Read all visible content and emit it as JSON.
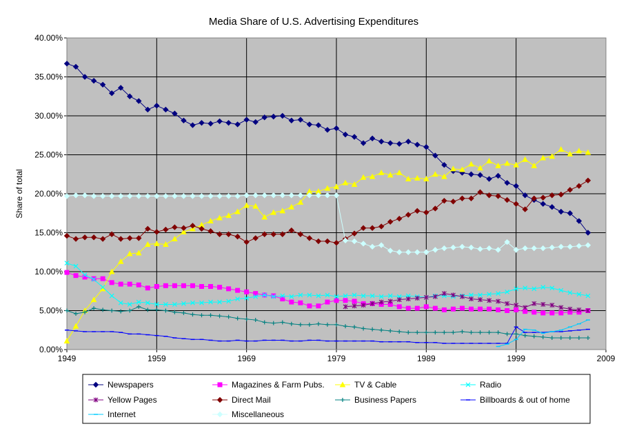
{
  "chart_data": {
    "type": "line",
    "title": "Media Share of U.S. Advertising Expenditures",
    "y_label": "Share of total",
    "x": [
      1949,
      1950,
      1951,
      1952,
      1953,
      1954,
      1955,
      1956,
      1957,
      1958,
      1959,
      1960,
      1961,
      1962,
      1963,
      1964,
      1965,
      1966,
      1967,
      1968,
      1969,
      1970,
      1971,
      1972,
      1973,
      1974,
      1975,
      1976,
      1977,
      1978,
      1979,
      1980,
      1981,
      1982,
      1983,
      1984,
      1985,
      1986,
      1987,
      1988,
      1989,
      1990,
      1991,
      1992,
      1993,
      1994,
      1995,
      1996,
      1997,
      1998,
      1999,
      2000,
      2001,
      2002,
      2003,
      2004,
      2005,
      2006,
      2007
    ],
    "xlim": [
      1949,
      2009
    ],
    "xticks": [
      1949,
      1959,
      1969,
      1979,
      1989,
      1999,
      2009
    ],
    "ylim": [
      0,
      40
    ],
    "yticks": [
      {
        "value": 0,
        "label": "0.00%"
      },
      {
        "value": 5,
        "label": "5.00%"
      },
      {
        "value": 10,
        "label": "10.00%"
      },
      {
        "value": 15,
        "label": "15.00%"
      },
      {
        "value": 20,
        "label": "20.00%"
      },
      {
        "value": 25,
        "label": "25.00%"
      },
      {
        "value": 30,
        "label": "30.00%"
      },
      {
        "value": 35,
        "label": "35.00%"
      },
      {
        "value": 40,
        "label": "40.00%"
      }
    ],
    "grid": true,
    "legend": "bottom",
    "series": [
      {
        "name": "Newspapers",
        "color": "#000080",
        "marker": "diamond",
        "values": [
          36.7,
          36.3,
          35.0,
          34.5,
          34.0,
          32.9,
          33.6,
          32.5,
          31.9,
          30.8,
          31.3,
          30.8,
          30.3,
          29.4,
          28.8,
          29.1,
          29.0,
          29.3,
          29.1,
          28.9,
          29.5,
          29.2,
          29.8,
          29.9,
          30.0,
          29.4,
          29.5,
          28.9,
          28.8,
          28.2,
          28.4,
          27.6,
          27.3,
          26.5,
          27.1,
          26.7,
          26.5,
          26.4,
          26.7,
          26.3,
          26.0,
          24.9,
          23.7,
          22.9,
          22.7,
          22.5,
          22.4,
          21.9,
          22.3,
          21.4,
          21.0,
          19.8,
          19.2,
          18.7,
          18.3,
          17.7,
          17.5,
          16.5,
          15.0
        ]
      },
      {
        "name": "Magazines & Farm Pubs.",
        "color": "#ff00ff",
        "marker": "square",
        "values": [
          9.9,
          9.5,
          9.3,
          9.1,
          9.1,
          8.6,
          8.4,
          8.4,
          8.3,
          7.9,
          8.1,
          8.2,
          8.2,
          8.2,
          8.2,
          8.1,
          8.1,
          8.0,
          7.8,
          7.6,
          7.4,
          7.2,
          7.0,
          6.9,
          6.5,
          6.1,
          6.0,
          5.6,
          5.6,
          6.1,
          6.3,
          6.3,
          6.2,
          5.9,
          5.9,
          5.8,
          5.8,
          5.5,
          5.3,
          5.3,
          5.5,
          5.3,
          5.1,
          5.2,
          5.3,
          5.2,
          5.2,
          5.2,
          5.1,
          5.0,
          5.1,
          4.9,
          4.8,
          4.7,
          4.7,
          4.7,
          4.8,
          4.8,
          5.0
        ]
      },
      {
        "name": "TV & Cable",
        "color": "#ffff00",
        "marker": "triangle",
        "values": [
          1.1,
          3.0,
          5.0,
          6.4,
          7.8,
          10.0,
          11.3,
          12.3,
          12.4,
          13.5,
          13.6,
          13.5,
          14.2,
          15.1,
          15.5,
          16.0,
          16.5,
          16.9,
          17.2,
          17.7,
          18.5,
          18.4,
          17.0,
          17.6,
          17.8,
          18.3,
          18.9,
          20.3,
          20.3,
          20.7,
          20.9,
          21.4,
          21.2,
          22.1,
          22.2,
          22.7,
          22.4,
          22.7,
          21.9,
          22.0,
          21.9,
          22.5,
          22.2,
          23.2,
          23.1,
          23.8,
          23.3,
          24.2,
          23.6,
          23.9,
          23.7,
          24.4,
          23.6,
          24.6,
          24.8,
          25.7,
          25.1,
          25.5,
          25.3
        ]
      },
      {
        "name": "Radio",
        "color": "#00ffff",
        "marker": "x",
        "values": [
          11.1,
          10.7,
          9.6,
          9.0,
          8.0,
          6.9,
          6.0,
          5.8,
          6.1,
          6.0,
          5.8,
          5.8,
          5.8,
          5.9,
          6.0,
          6.0,
          6.1,
          6.1,
          6.2,
          6.5,
          6.6,
          6.8,
          7.0,
          6.8,
          6.9,
          6.8,
          7.0,
          7.0,
          6.9,
          7.0,
          6.8,
          6.9,
          7.0,
          6.9,
          6.9,
          6.8,
          6.9,
          6.8,
          6.9,
          6.8,
          6.7,
          6.9,
          6.9,
          6.8,
          6.9,
          7.0,
          7.0,
          7.1,
          7.2,
          7.4,
          7.8,
          7.9,
          7.8,
          8.0,
          7.9,
          7.6,
          7.3,
          7.1,
          6.9
        ]
      },
      {
        "name": "Yellow Pages",
        "color": "#800080",
        "marker": "star",
        "values": [
          null,
          null,
          null,
          null,
          null,
          null,
          null,
          null,
          null,
          null,
          null,
          null,
          null,
          null,
          null,
          null,
          null,
          null,
          null,
          null,
          null,
          null,
          null,
          null,
          null,
          null,
          null,
          null,
          null,
          null,
          null,
          5.5,
          5.6,
          5.7,
          5.9,
          6.1,
          6.2,
          6.4,
          6.5,
          6.6,
          6.7,
          6.8,
          7.2,
          7.0,
          6.8,
          6.5,
          6.4,
          6.3,
          6.2,
          5.9,
          5.7,
          5.4,
          5.9,
          5.8,
          5.7,
          5.4,
          5.2,
          5.1,
          5.0
        ]
      },
      {
        "name": "Direct Mail",
        "color": "#800000",
        "marker": "diamond",
        "values": [
          14.6,
          14.2,
          14.4,
          14.4,
          14.2,
          14.8,
          14.2,
          14.3,
          14.3,
          15.5,
          15.1,
          15.4,
          15.7,
          15.6,
          15.9,
          15.5,
          15.2,
          14.8,
          14.8,
          14.5,
          13.8,
          14.3,
          14.8,
          14.8,
          14.8,
          15.3,
          14.8,
          14.3,
          13.9,
          13.9,
          13.7,
          14.2,
          14.9,
          15.6,
          15.6,
          15.8,
          16.4,
          16.8,
          17.3,
          17.8,
          17.6,
          18.1,
          19.1,
          19.0,
          19.4,
          19.4,
          20.2,
          19.8,
          19.7,
          19.2,
          18.7,
          18.0,
          19.4,
          19.5,
          19.8,
          19.9,
          20.5,
          21.0,
          21.7
        ]
      },
      {
        "name": "Business Papers",
        "color": "#008080",
        "marker": "plus",
        "values": [
          5.0,
          4.6,
          4.8,
          5.3,
          5.1,
          5.0,
          4.9,
          5.0,
          5.5,
          5.1,
          5.1,
          5.0,
          4.8,
          4.7,
          4.5,
          4.4,
          4.4,
          4.3,
          4.2,
          4.0,
          3.9,
          3.8,
          3.5,
          3.4,
          3.5,
          3.3,
          3.2,
          3.2,
          3.3,
          3.2,
          3.2,
          3.0,
          2.9,
          2.7,
          2.6,
          2.5,
          2.4,
          2.3,
          2.2,
          2.2,
          2.2,
          2.2,
          2.2,
          2.2,
          2.3,
          2.2,
          2.2,
          2.2,
          2.2,
          2.0,
          2.0,
          1.8,
          1.7,
          1.6,
          1.5,
          1.5,
          1.5,
          1.5,
          1.5
        ]
      },
      {
        "name": "Billboards & out of home",
        "color": "#0000ff",
        "marker": "dash",
        "values": [
          2.5,
          2.4,
          2.3,
          2.3,
          2.3,
          2.3,
          2.2,
          2.0,
          2.0,
          1.9,
          1.8,
          1.7,
          1.5,
          1.4,
          1.3,
          1.3,
          1.2,
          1.1,
          1.1,
          1.2,
          1.1,
          1.1,
          1.2,
          1.2,
          1.2,
          1.1,
          1.1,
          1.2,
          1.2,
          1.1,
          1.1,
          1.1,
          1.1,
          1.1,
          1.1,
          1.0,
          1.0,
          1.0,
          1.0,
          0.9,
          0.9,
          0.9,
          0.8,
          0.8,
          0.8,
          0.8,
          0.8,
          0.8,
          0.8,
          0.8,
          2.9,
          2.2,
          2.2,
          2.2,
          2.3,
          2.3,
          2.4,
          2.5,
          2.6
        ]
      },
      {
        "name": "Internet",
        "color": "#00ccff",
        "marker": "dash",
        "values": [
          null,
          null,
          null,
          null,
          null,
          null,
          null,
          null,
          null,
          null,
          null,
          null,
          null,
          null,
          null,
          null,
          null,
          null,
          null,
          null,
          null,
          null,
          null,
          null,
          null,
          null,
          null,
          null,
          null,
          null,
          null,
          null,
          null,
          null,
          null,
          null,
          null,
          null,
          null,
          null,
          null,
          null,
          null,
          null,
          null,
          null,
          null,
          null,
          0.4,
          0.7,
          1.3,
          2.6,
          2.5,
          2.1,
          2.3,
          2.5,
          2.9,
          3.3,
          3.8
        ]
      },
      {
        "name": "Miscellaneous",
        "color": "#ccffff",
        "marker": "diamond",
        "values": [
          19.7,
          19.8,
          19.8,
          19.7,
          19.7,
          19.7,
          19.7,
          19.7,
          19.7,
          19.7,
          19.7,
          19.7,
          19.7,
          19.7,
          19.7,
          19.7,
          19.7,
          19.7,
          19.7,
          19.7,
          19.8,
          19.8,
          19.8,
          19.8,
          19.8,
          19.8,
          19.8,
          19.8,
          19.8,
          19.8,
          19.8,
          14.0,
          13.9,
          13.6,
          13.2,
          13.4,
          12.7,
          12.5,
          12.5,
          12.5,
          12.5,
          12.8,
          13.0,
          13.1,
          13.2,
          13.1,
          12.9,
          13.0,
          12.8,
          13.8,
          12.8,
          13.0,
          13.0,
          13.0,
          13.1,
          13.2,
          13.2,
          13.3,
          13.4
        ]
      }
    ]
  }
}
